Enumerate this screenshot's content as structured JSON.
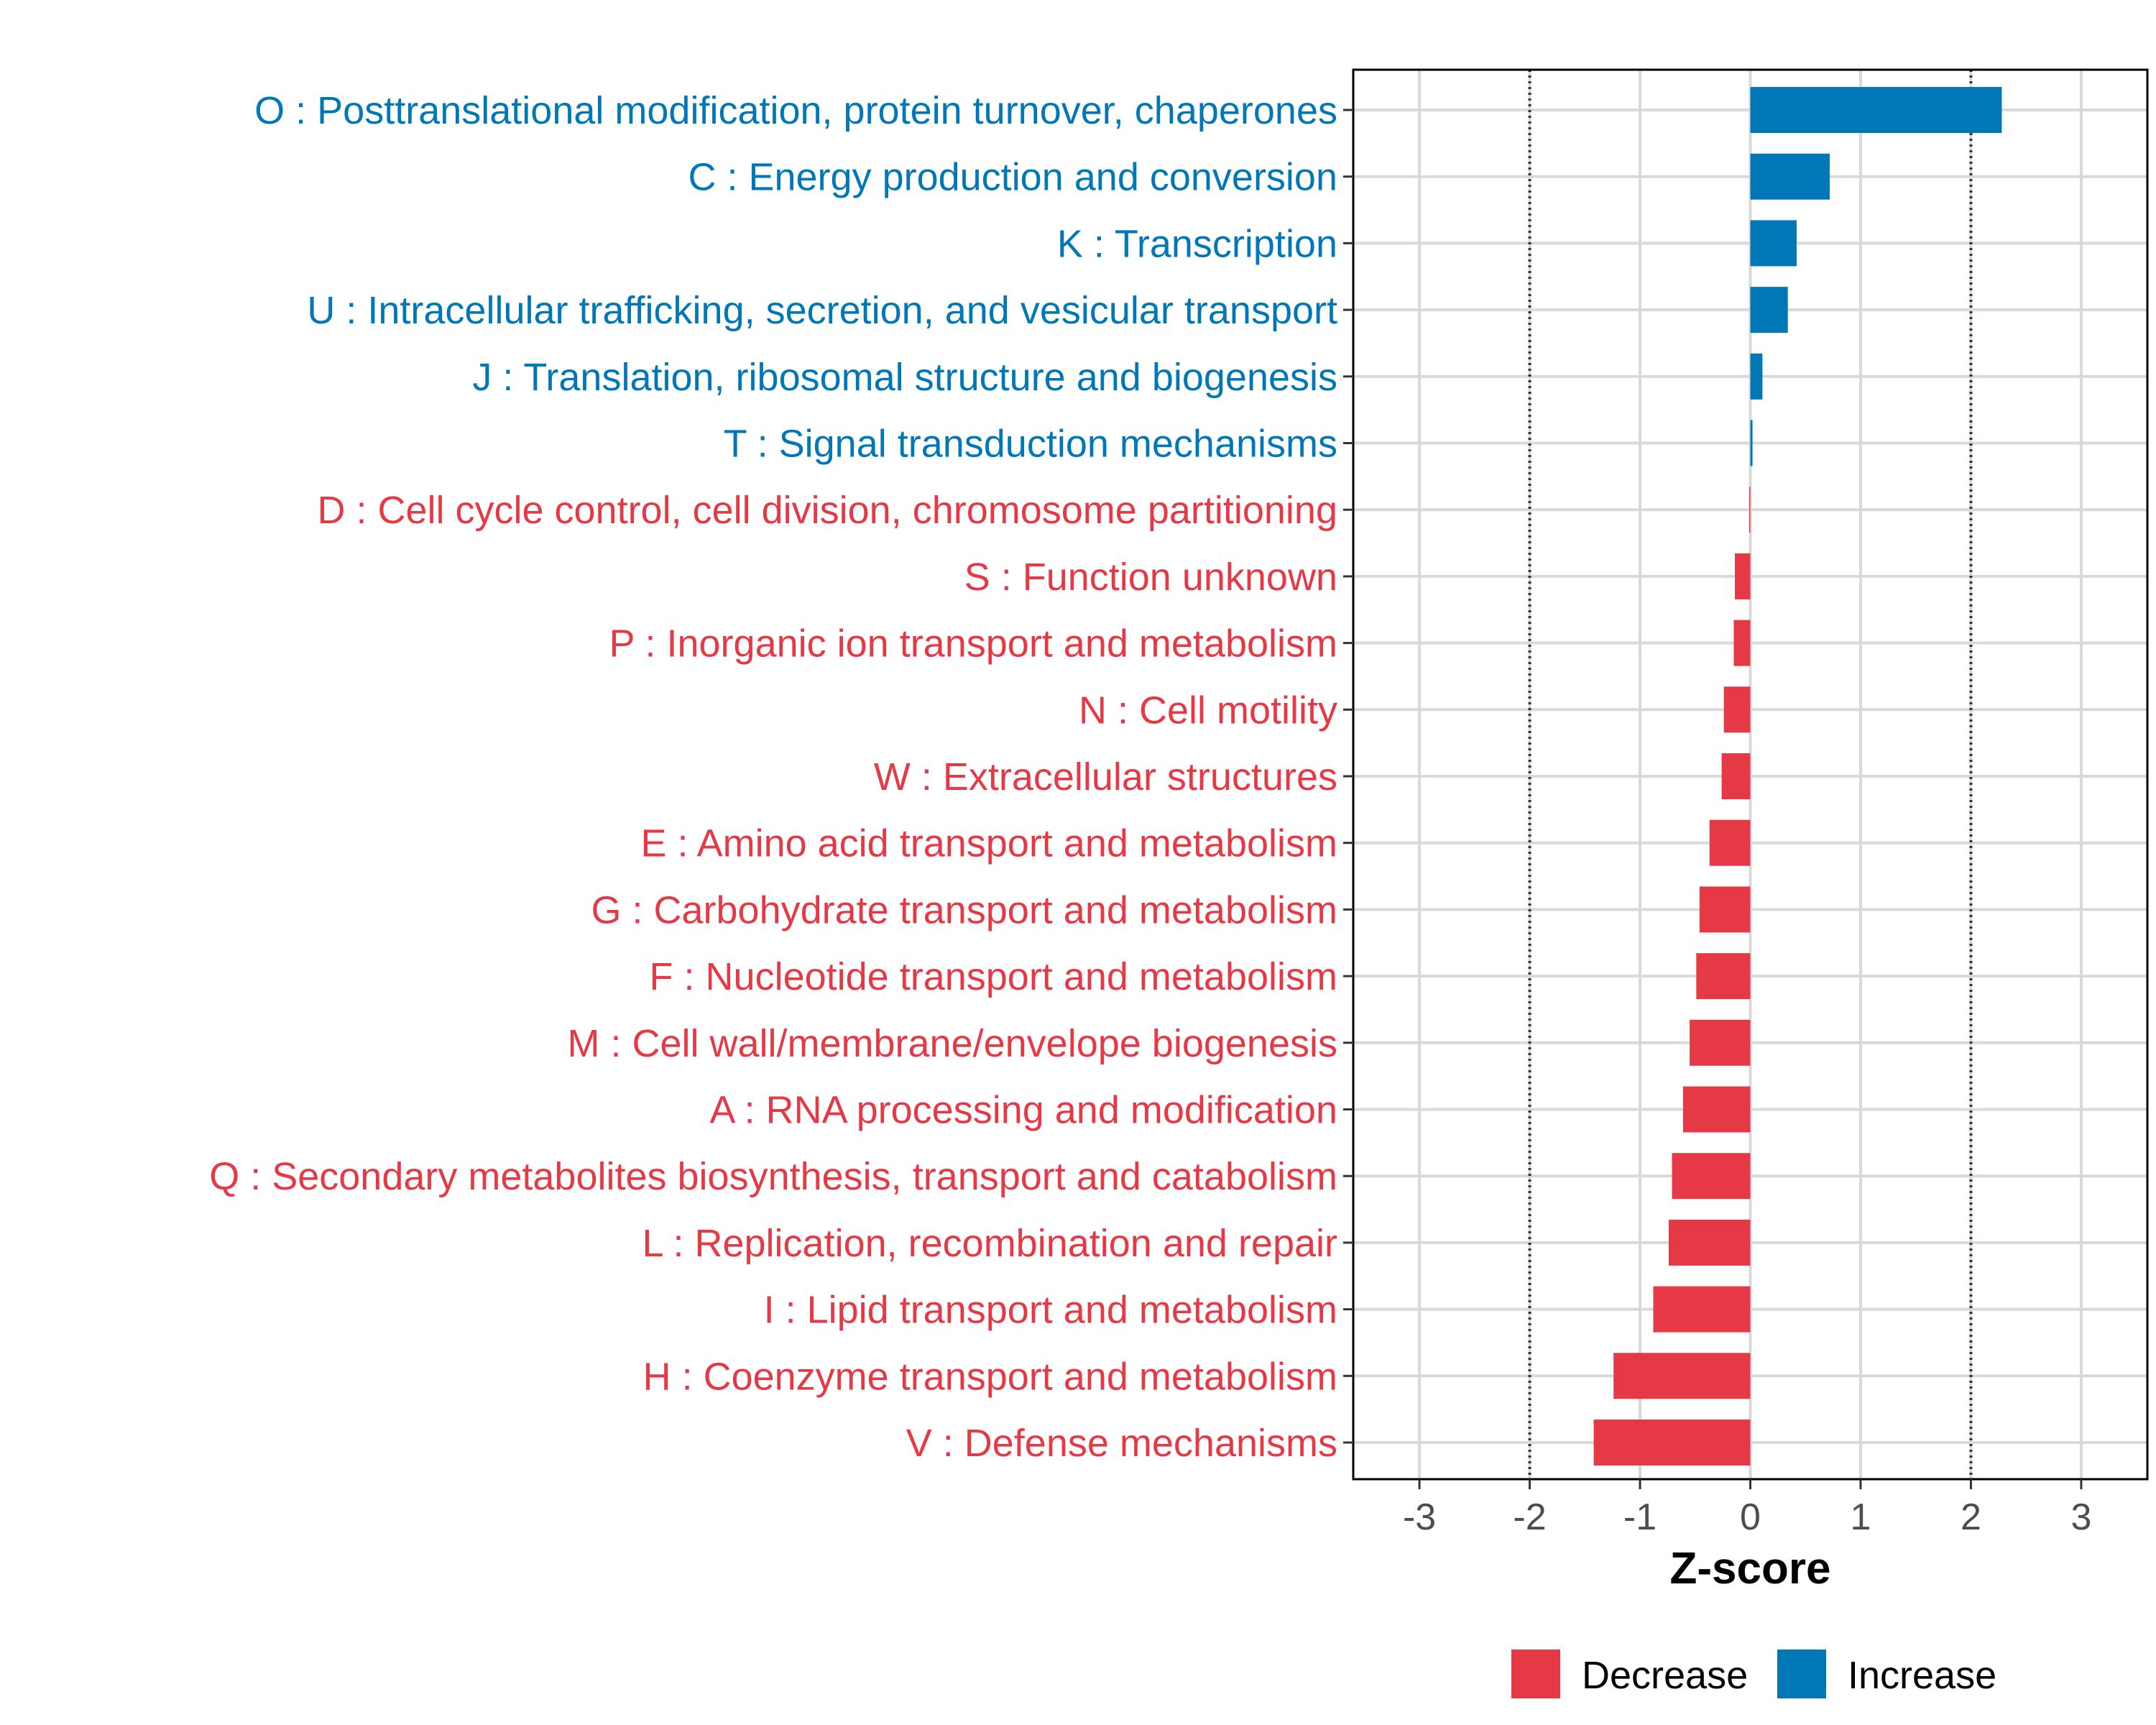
{
  "chart_data": {
    "type": "bar",
    "orientation": "horizontal",
    "xlabel": "Z-score",
    "xlim": [
      -3.6,
      3.6
    ],
    "xticks": [
      -3,
      -2,
      -1,
      0,
      1,
      2,
      3
    ],
    "tick_labels": [
      "-3",
      "-2",
      "-1",
      "0",
      "1",
      "2",
      "3"
    ],
    "reference_lines": [
      -2,
      2
    ],
    "grid": true,
    "legend_position": "bottom",
    "colors": {
      "Decrease": "#e63946",
      "Increase": "#0077b6"
    },
    "legend": [
      {
        "name": "Decrease",
        "label": "Decrease"
      },
      {
        "name": "Increase",
        "label": "Increase"
      }
    ],
    "categories": [
      "O : Posttranslational modification, protein turnover, chaperones",
      "C : Energy production and conversion",
      "K : Transcription",
      "U : Intracellular trafficking, secretion, and vesicular transport",
      "J : Translation, ribosomal structure and biogenesis",
      "T : Signal transduction mechanisms",
      "D : Cell cycle control, cell division, chromosome partitioning",
      "S : Function unknown",
      "P : Inorganic ion transport and metabolism",
      "N : Cell motility",
      "W : Extracellular structures",
      "E : Amino acid transport and metabolism",
      "G : Carbohydrate transport and metabolism",
      "F : Nucleotide transport and metabolism",
      "M : Cell wall/membrane/envelope biogenesis",
      "A : RNA processing and modification",
      "Q : Secondary metabolites biosynthesis, transport and catabolism",
      "L : Replication, recombination and repair",
      "I : Lipid transport and metabolism",
      "H : Coenzyme transport and metabolism",
      "V : Defense mechanisms"
    ],
    "values": [
      2.28,
      0.72,
      0.42,
      0.34,
      0.11,
      0.02,
      -0.01,
      -0.14,
      -0.15,
      -0.24,
      -0.26,
      -0.37,
      -0.46,
      -0.49,
      -0.55,
      -0.61,
      -0.71,
      -0.74,
      -0.88,
      -1.24,
      -1.42
    ],
    "groups": [
      "Increase",
      "Increase",
      "Increase",
      "Increase",
      "Increase",
      "Increase",
      "Decrease",
      "Decrease",
      "Decrease",
      "Decrease",
      "Decrease",
      "Decrease",
      "Decrease",
      "Decrease",
      "Decrease",
      "Decrease",
      "Decrease",
      "Decrease",
      "Decrease",
      "Decrease",
      "Decrease"
    ]
  }
}
